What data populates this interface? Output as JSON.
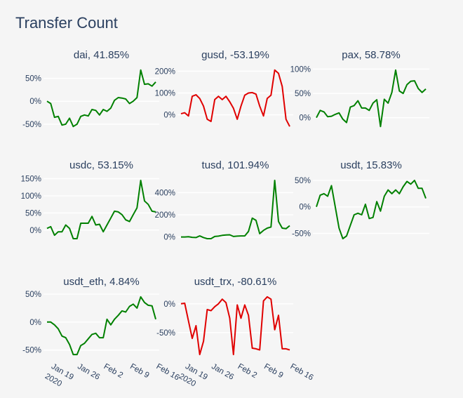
{
  "title": "Transfer Count",
  "chart_data": [
    {
      "type": "line",
      "title": "dai, 41.85%",
      "color": "#008000",
      "yticks": [
        -50,
        0,
        50
      ],
      "tick_suffix": "%",
      "values": [
        0,
        -5,
        -35,
        -33,
        -52,
        -50,
        -37,
        -55,
        -50,
        -33,
        -30,
        -32,
        -18,
        -20,
        -30,
        -18,
        -22,
        -15,
        2,
        8,
        7,
        5,
        -5,
        0,
        8,
        68,
        37,
        38,
        33,
        42
      ]
    },
    {
      "type": "line",
      "title": "gusd, -53.19%",
      "color": "#e00000",
      "yticks": [
        0,
        100,
        200
      ],
      "tick_suffix": "%",
      "values": [
        5,
        10,
        -5,
        85,
        92,
        75,
        40,
        -20,
        -30,
        70,
        85,
        70,
        85,
        60,
        30,
        -20,
        40,
        90,
        100,
        102,
        95,
        40,
        -5,
        75,
        90,
        205,
        190,
        130,
        -20,
        -53
      ]
    },
    {
      "type": "line",
      "title": "pax, 58.78%",
      "color": "#008000",
      "yticks": [
        0,
        50,
        100
      ],
      "tick_suffix": "%",
      "values": [
        0,
        15,
        12,
        2,
        3,
        7,
        10,
        -3,
        -10,
        22,
        25,
        35,
        20,
        20,
        15,
        30,
        37,
        -18,
        38,
        30,
        52,
        98,
        55,
        50,
        68,
        75,
        76,
        60,
        52,
        59
      ]
    },
    {
      "type": "line",
      "title": "usdc, 53.15%",
      "color": "#008000",
      "yticks": [
        0,
        50,
        100,
        150
      ],
      "tick_suffix": "%",
      "values": [
        5,
        10,
        -15,
        -5,
        -5,
        15,
        5,
        -25,
        -25,
        20,
        20,
        20,
        40,
        15,
        17,
        -5,
        15,
        35,
        55,
        53,
        45,
        30,
        25,
        45,
        65,
        145,
        85,
        75,
        55,
        53
      ]
    },
    {
      "type": "line",
      "title": "tusd, 101.94%",
      "color": "#008000",
      "yticks": [
        0,
        200,
        400
      ],
      "tick_suffix": "%",
      "values": [
        0,
        0,
        2,
        -3,
        -5,
        10,
        -5,
        -15,
        -15,
        5,
        8,
        15,
        18,
        20,
        5,
        8,
        10,
        10,
        50,
        170,
        150,
        30,
        60,
        80,
        90,
        510,
        140,
        80,
        75,
        102
      ]
    },
    {
      "type": "line",
      "title": "usdt, 15.83%",
      "color": "#008000",
      "yticks": [
        -50,
        0,
        50
      ],
      "tick_suffix": "%",
      "values": [
        0,
        22,
        25,
        20,
        40,
        0,
        -40,
        -60,
        -55,
        -35,
        -15,
        -12,
        -15,
        5,
        -22,
        -20,
        10,
        -8,
        20,
        32,
        25,
        32,
        25,
        38,
        48,
        43,
        50,
        35,
        35,
        16
      ]
    },
    {
      "type": "line",
      "title": "usdt_eth, 4.84%",
      "color": "#008000",
      "yticks": [
        -50,
        0,
        50
      ],
      "tick_suffix": "%",
      "values": [
        0,
        0,
        -5,
        -12,
        -25,
        -28,
        -40,
        -58,
        -58,
        -42,
        -38,
        -30,
        -22,
        -20,
        -28,
        -28,
        5,
        -5,
        5,
        12,
        20,
        18,
        28,
        32,
        25,
        45,
        35,
        30,
        29,
        5
      ]
    },
    {
      "type": "line",
      "title": "usdt_trx, -80.61%",
      "color": "#e00000",
      "yticks": [
        -50,
        0
      ],
      "tick_suffix": "%",
      "values": [
        0,
        1,
        -30,
        -60,
        -38,
        -88,
        -65,
        -10,
        -12,
        -5,
        0,
        8,
        2,
        -25,
        -88,
        -2,
        -25,
        -2,
        -20,
        -77,
        -78,
        -80,
        5,
        12,
        8,
        -45,
        -20,
        -78,
        -78,
        -80
      ]
    }
  ],
  "x_dates": [
    "2020-01-18",
    "2020-01-19",
    "2020-01-20",
    "2020-01-21",
    "2020-01-22",
    "2020-01-23",
    "2020-01-24",
    "2020-01-25",
    "2020-01-26",
    "2020-01-27",
    "2020-01-28",
    "2020-01-29",
    "2020-01-30",
    "2020-01-31",
    "2020-02-01",
    "2020-02-02",
    "2020-02-03",
    "2020-02-04",
    "2020-02-05",
    "2020-02-06",
    "2020-02-07",
    "2020-02-08",
    "2020-02-09",
    "2020-02-10",
    "2020-02-11",
    "2020-02-12",
    "2020-02-13",
    "2020-02-14",
    "2020-02-15",
    "2020-02-16"
  ],
  "x_ticks": [
    {
      "label": "Jan 19",
      "sub": "2020",
      "date": "2020-01-19"
    },
    {
      "label": "Jan 26",
      "sub": "",
      "date": "2020-01-26"
    },
    {
      "label": "Feb 2",
      "sub": "",
      "date": "2020-02-02"
    },
    {
      "label": "Feb 9",
      "sub": "",
      "date": "2020-02-09"
    },
    {
      "label": "Feb 16",
      "sub": "",
      "date": "2020-02-16"
    }
  ]
}
